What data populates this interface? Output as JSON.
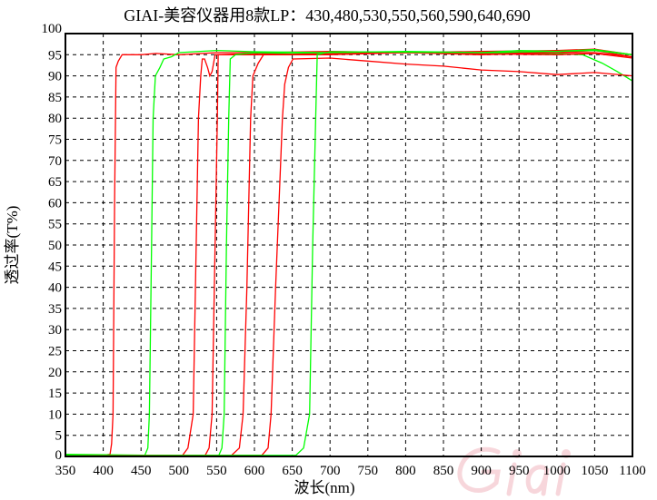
{
  "chart_data": {
    "type": "line",
    "title": "GIAI-美容仪器用8款LP：430,480,530,550,560,590,640,690",
    "xlabel": "波长(nm)",
    "ylabel": "透过率(T%)",
    "xlim": [
      350,
      1100
    ],
    "ylim": [
      0,
      100
    ],
    "xticks": [
      350,
      400,
      450,
      500,
      550,
      600,
      650,
      700,
      750,
      800,
      850,
      900,
      950,
      1000,
      1050,
      1100
    ],
    "yticks": [
      0,
      5,
      10,
      15,
      20,
      25,
      30,
      35,
      40,
      45,
      50,
      55,
      60,
      65,
      70,
      75,
      80,
      85,
      90,
      95,
      100
    ],
    "grid": true,
    "grid_style": "dashed",
    "watermark": "Giai",
    "colors": {
      "red": "#ff0000",
      "green": "#00ff00"
    },
    "series": [
      {
        "color": "#ff0000",
        "points": [
          [
            350,
            0.3
          ],
          [
            400,
            0.3
          ],
          [
            409,
            0.5
          ],
          [
            411,
            3
          ],
          [
            413,
            10
          ],
          [
            415,
            60
          ],
          [
            417,
            92
          ],
          [
            420,
            93.5
          ],
          [
            425,
            95
          ],
          [
            450,
            95
          ],
          [
            470,
            95.3
          ],
          [
            500,
            95
          ],
          [
            550,
            95.5
          ],
          [
            600,
            95.5
          ],
          [
            700,
            95.8
          ],
          [
            800,
            95.5
          ],
          [
            900,
            95.8
          ],
          [
            1000,
            96
          ],
          [
            1050,
            96.3
          ],
          [
            1100,
            95
          ]
        ]
      },
      {
        "color": "#00ff00",
        "points": [
          [
            350,
            0.5
          ],
          [
            455,
            0.3
          ],
          [
            459,
            2
          ],
          [
            461,
            10
          ],
          [
            464,
            50
          ],
          [
            466,
            80
          ],
          [
            469,
            90
          ],
          [
            475,
            92
          ],
          [
            480,
            94
          ],
          [
            490,
            94.5
          ],
          [
            500,
            95.5
          ],
          [
            550,
            96
          ],
          [
            600,
            95.7
          ],
          [
            700,
            95.5
          ],
          [
            800,
            95.5
          ],
          [
            900,
            95.3
          ],
          [
            1000,
            95.3
          ],
          [
            1034,
            95
          ],
          [
            1060,
            93
          ],
          [
            1080,
            91
          ],
          [
            1100,
            88.8
          ]
        ]
      },
      {
        "color": "#ff0000",
        "points": [
          [
            350,
            0.2
          ],
          [
            505,
            0.3
          ],
          [
            512,
            2
          ],
          [
            519,
            10
          ],
          [
            523,
            50
          ],
          [
            526,
            80
          ],
          [
            529,
            90
          ],
          [
            531,
            94
          ],
          [
            534,
            94
          ],
          [
            538,
            92
          ],
          [
            541,
            90
          ],
          [
            544,
            91
          ],
          [
            548,
            95
          ],
          [
            600,
            95
          ],
          [
            700,
            95
          ],
          [
            800,
            95.5
          ],
          [
            900,
            95
          ],
          [
            1000,
            95.5
          ],
          [
            1050,
            96
          ],
          [
            1100,
            94.5
          ]
        ]
      },
      {
        "color": "#ff0000",
        "points": [
          [
            350,
            0.2
          ],
          [
            535,
            0.3
          ],
          [
            540,
            2
          ],
          [
            544,
            10
          ],
          [
            548,
            50
          ],
          [
            551,
            80
          ],
          [
            552,
            95
          ],
          [
            600,
            95.3
          ],
          [
            700,
            95.2
          ],
          [
            800,
            95.5
          ],
          [
            900,
            95.5
          ],
          [
            1000,
            95.5
          ],
          [
            1050,
            95.5
          ],
          [
            1100,
            94.5
          ]
        ]
      },
      {
        "color": "#00ff00",
        "points": [
          [
            350,
            0.2
          ],
          [
            553,
            0.3
          ],
          [
            557,
            2
          ],
          [
            560,
            10
          ],
          [
            563,
            50
          ],
          [
            566,
            80
          ],
          [
            568,
            94
          ],
          [
            575,
            95
          ],
          [
            600,
            95.5
          ],
          [
            650,
            95.3
          ],
          [
            700,
            95.5
          ],
          [
            800,
            95.8
          ],
          [
            900,
            95.5
          ],
          [
            950,
            96
          ],
          [
            1000,
            95.8
          ],
          [
            1050,
            96
          ],
          [
            1100,
            95
          ]
        ]
      },
      {
        "color": "#ff0000",
        "points": [
          [
            350,
            0.2
          ],
          [
            570,
            0.3
          ],
          [
            580,
            2
          ],
          [
            585,
            10
          ],
          [
            590,
            40
          ],
          [
            595,
            80
          ],
          [
            598,
            90
          ],
          [
            605,
            93
          ],
          [
            612,
            95
          ],
          [
            700,
            95.2
          ],
          [
            800,
            95.5
          ],
          [
            900,
            95.2
          ],
          [
            1000,
            95
          ],
          [
            1050,
            95.3
          ],
          [
            1100,
            94.2
          ]
        ]
      },
      {
        "color": "#ff0000",
        "points": [
          [
            350,
            0.2
          ],
          [
            610,
            0.3
          ],
          [
            618,
            2
          ],
          [
            622,
            10
          ],
          [
            628,
            40
          ],
          [
            637,
            80
          ],
          [
            640,
            88
          ],
          [
            645,
            92
          ],
          [
            651,
            94
          ],
          [
            700,
            94.2
          ],
          [
            750,
            93.5
          ],
          [
            800,
            92.8
          ],
          [
            850,
            92.3
          ],
          [
            900,
            91.4
          ],
          [
            950,
            91
          ],
          [
            1000,
            90.3
          ],
          [
            1050,
            90.8
          ],
          [
            1100,
            90
          ]
        ]
      },
      {
        "color": "#00ff00",
        "points": [
          [
            350,
            0.2
          ],
          [
            655,
            0.3
          ],
          [
            665,
            2
          ],
          [
            673,
            10
          ],
          [
            677,
            50
          ],
          [
            681,
            80
          ],
          [
            683,
            95
          ],
          [
            700,
            95.7
          ],
          [
            800,
            95.6
          ],
          [
            900,
            95.5
          ],
          [
            1000,
            95.8
          ],
          [
            1050,
            96.2
          ],
          [
            1100,
            95
          ]
        ]
      }
    ]
  }
}
